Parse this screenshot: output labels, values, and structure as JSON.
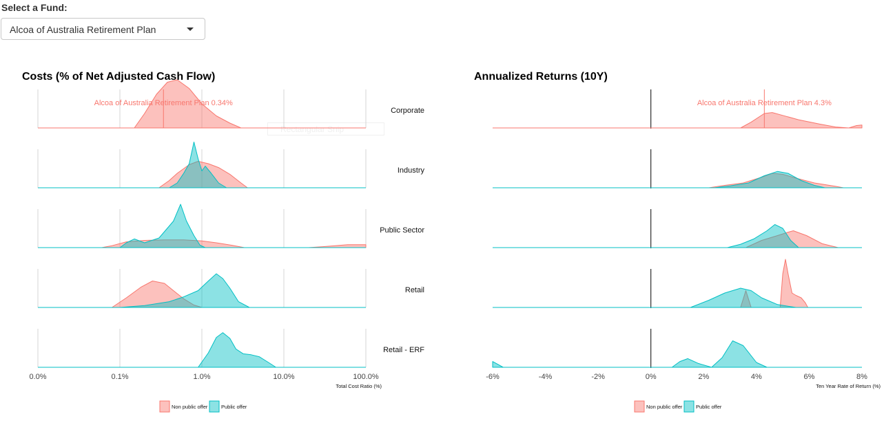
{
  "selector": {
    "label": "Select a Fund:",
    "value": "Alcoa of Australia Retirement Plan"
  },
  "tooltip_ghost": "Rectangular Snip",
  "colors": {
    "non_public": "#f8766d",
    "public": "#00bfc4",
    "ref_line": "#000000"
  },
  "chart_data": [
    {
      "type": "area",
      "title": "Costs (% of Net Adjusted Cash Flow)",
      "xlabel": "Total Cost Ratio (%)",
      "x_scale": "log10",
      "xlim": [
        0.01,
        100
      ],
      "xticks": [
        0.01,
        0.1,
        1,
        10,
        100
      ],
      "xtick_labels": [
        "0.0%",
        "0.1%",
        "1.0%",
        "10.0%",
        "100.0%"
      ],
      "grid": true,
      "legend_position": "bottom",
      "legend": [
        "Non public offer",
        "Public offer"
      ],
      "annotation": {
        "text": "Alcoa of Australia Retirement Plan 0.34%",
        "value": 0.34,
        "facet": "Corporate"
      },
      "facets": [
        {
          "name": "Corporate",
          "series": [
            {
              "name": "Non public offer",
              "x": [
                0.15,
                0.2,
                0.28,
                0.38,
                0.5,
                0.7,
                1.0,
                1.5,
                2.2,
                3.0
              ],
              "y": [
                0.0,
                0.3,
                0.7,
                0.95,
                1.0,
                0.82,
                0.5,
                0.25,
                0.1,
                0.0
              ]
            }
          ]
        },
        {
          "name": "Industry",
          "series": [
            {
              "name": "Non public offer",
              "x": [
                0.3,
                0.4,
                0.5,
                0.7,
                0.9,
                1.2,
                1.6,
                2.2,
                3.0,
                3.6
              ],
              "y": [
                0.0,
                0.15,
                0.3,
                0.48,
                0.55,
                0.5,
                0.42,
                0.28,
                0.1,
                0.0
              ]
            },
            {
              "name": "Public offer",
              "x": [
                0.4,
                0.5,
                0.6,
                0.7,
                0.8,
                0.9,
                1.0,
                1.1,
                1.3,
                1.6,
                2.0
              ],
              "y": [
                0.0,
                0.1,
                0.3,
                0.5,
                0.95,
                0.6,
                0.35,
                0.45,
                0.3,
                0.1,
                0.0
              ]
            }
          ]
        },
        {
          "name": "Public Sector",
          "series": [
            {
              "name": "Non public offer",
              "x": [
                0.06,
                0.08,
                0.12,
                0.2,
                0.35,
                0.6,
                1.0,
                1.5,
                2.3,
                3.3,
                20.0,
                30.0,
                60.0,
                100.0
              ],
              "y": [
                0.0,
                0.04,
                0.12,
                0.15,
                0.16,
                0.16,
                0.14,
                0.1,
                0.05,
                0.0,
                0.0,
                0.02,
                0.06,
                0.06
              ]
            },
            {
              "name": "Public offer",
              "x": [
                0.1,
                0.12,
                0.15,
                0.2,
                0.3,
                0.45,
                0.55,
                0.65,
                0.8,
                0.95,
                1.1
              ],
              "y": [
                0.0,
                0.1,
                0.18,
                0.1,
                0.2,
                0.55,
                0.9,
                0.55,
                0.25,
                0.05,
                0.0
              ]
            }
          ]
        },
        {
          "name": "Retail",
          "series": [
            {
              "name": "Non public offer",
              "x": [
                0.08,
                0.12,
                0.18,
                0.25,
                0.35,
                0.45,
                0.6,
                0.8,
                1.0
              ],
              "y": [
                0.0,
                0.2,
                0.42,
                0.55,
                0.5,
                0.35,
                0.18,
                0.05,
                0.0
              ]
            },
            {
              "name": "Public offer",
              "x": [
                0.1,
                0.2,
                0.4,
                0.6,
                0.9,
                1.2,
                1.5,
                1.8,
                2.2,
                2.8,
                3.8
              ],
              "y": [
                0.0,
                0.04,
                0.12,
                0.22,
                0.35,
                0.55,
                0.7,
                0.6,
                0.4,
                0.12,
                0.0
              ]
            }
          ]
        },
        {
          "name": "Retail - ERF",
          "series": [
            {
              "name": "Public offer",
              "x": [
                0.9,
                1.2,
                1.5,
                1.8,
                2.2,
                2.6,
                3.2,
                4.0,
                5.0,
                6.5,
                8.0
              ],
              "y": [
                0.0,
                0.3,
                0.62,
                0.72,
                0.6,
                0.38,
                0.28,
                0.26,
                0.22,
                0.1,
                0.0
              ]
            }
          ]
        }
      ]
    },
    {
      "type": "area",
      "title": "Annualized Returns (10Y)",
      "xlabel": "Ten Year Rate of Return (%)",
      "xlim": [
        -6,
        8
      ],
      "xticks": [
        -6,
        -4,
        -2,
        0,
        2,
        4,
        6,
        8
      ],
      "xtick_labels": [
        "-6%",
        "-4%",
        "-2%",
        "0%",
        "2%",
        "4%",
        "6%",
        "8%"
      ],
      "reference_line": 0,
      "grid": false,
      "legend_position": "bottom",
      "legend": [
        "Non public offer",
        "Public offer"
      ],
      "annotation": {
        "text": "Alcoa of Australia Retirement Plan 4.3%",
        "value": 4.3,
        "facet": "Corporate"
      },
      "facets": [
        {
          "name": "Corporate",
          "series": [
            {
              "name": "Non public offer",
              "x": [
                3.4,
                3.8,
                4.3,
                4.6,
                5.0,
                5.6,
                6.4,
                7.0,
                7.5,
                7.8,
                8.0
              ],
              "y": [
                0.0,
                0.12,
                0.3,
                0.32,
                0.26,
                0.17,
                0.08,
                0.02,
                0.0,
                0.05,
                0.06
              ]
            }
          ]
        },
        {
          "name": "Industry",
          "series": [
            {
              "name": "Non public offer",
              "x": [
                2.2,
                2.8,
                3.5,
                4.2,
                4.6,
                5.0,
                5.5,
                6.2,
                7.0,
                7.3
              ],
              "y": [
                0.0,
                0.05,
                0.1,
                0.22,
                0.3,
                0.28,
                0.2,
                0.1,
                0.03,
                0.0
              ]
            },
            {
              "name": "Public offer",
              "x": [
                2.4,
                3.0,
                3.7,
                4.3,
                4.8,
                5.2,
                5.7,
                6.2,
                6.6
              ],
              "y": [
                0.0,
                0.04,
                0.1,
                0.25,
                0.34,
                0.3,
                0.15,
                0.05,
                0.0
              ]
            }
          ]
        },
        {
          "name": "Public Sector",
          "series": [
            {
              "name": "Non public offer",
              "x": [
                3.6,
                4.2,
                4.8,
                5.2,
                5.4,
                5.9,
                6.5,
                7.1
              ],
              "y": [
                0.0,
                0.15,
                0.25,
                0.32,
                0.35,
                0.25,
                0.08,
                0.0
              ]
            },
            {
              "name": "Public offer",
              "x": [
                2.9,
                3.4,
                3.9,
                4.4,
                4.7,
                5.0,
                5.3,
                5.6
              ],
              "y": [
                0.0,
                0.07,
                0.18,
                0.35,
                0.48,
                0.4,
                0.15,
                0.0
              ]
            }
          ]
        },
        {
          "name": "Retail",
          "series": [
            {
              "name": "Non public offer",
              "x": [
                3.4,
                3.6,
                3.8,
                4.9,
                5.0,
                5.1,
                5.2,
                5.35,
                5.5,
                5.7,
                5.85,
                5.95
              ],
              "y": [
                0.0,
                0.35,
                0.0,
                0.0,
                0.7,
                1.0,
                0.7,
                0.3,
                0.25,
                0.2,
                0.1,
                0.0
              ]
            },
            {
              "name": "Public offer",
              "x": [
                1.5,
                2.2,
                2.8,
                3.4,
                3.8,
                4.2,
                4.8,
                5.5
              ],
              "y": [
                0.0,
                0.15,
                0.3,
                0.4,
                0.35,
                0.2,
                0.06,
                0.0
              ]
            }
          ]
        },
        {
          "name": "Retail - ERF",
          "series": [
            {
              "name": "Public offer",
              "x": [
                -6.0,
                -5.6,
                -5.4,
                0.8,
                1.1,
                1.4,
                1.8,
                2.3,
                2.7,
                3.1,
                3.5,
                4.0,
                4.4
              ],
              "y": [
                0.12,
                0.0,
                0.0,
                0.0,
                0.12,
                0.18,
                0.08,
                0.0,
                0.2,
                0.55,
                0.45,
                0.1,
                0.0
              ]
            }
          ]
        }
      ]
    }
  ]
}
